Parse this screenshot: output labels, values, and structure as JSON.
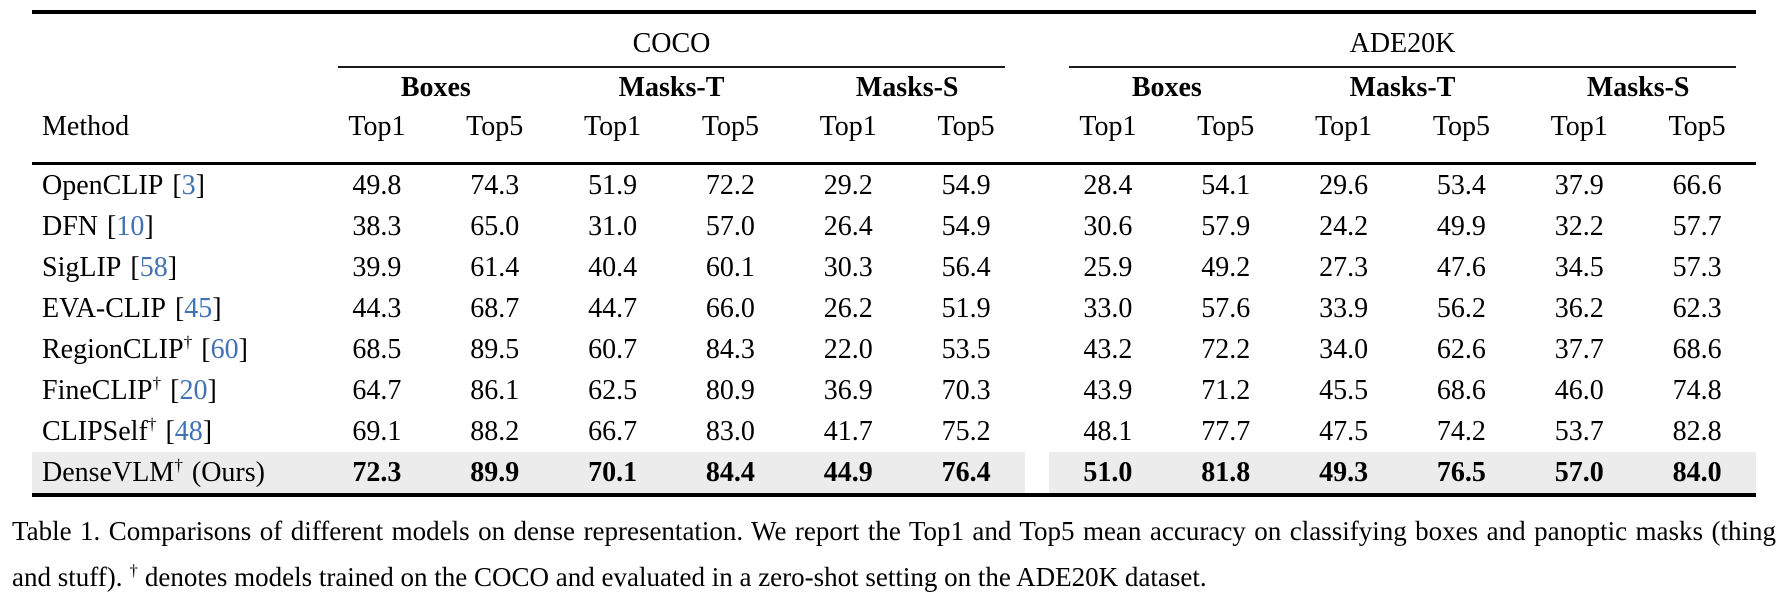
{
  "table": {
    "groups": [
      "COCO",
      "ADE20K"
    ],
    "subgroups": [
      "Boxes",
      "Masks-T",
      "Masks-S",
      "Boxes",
      "Masks-T",
      "Masks-S"
    ],
    "method_header": "Method",
    "metrics": [
      "Top1",
      "Top5",
      "Top1",
      "Top5",
      "Top1",
      "Top5",
      "Top1",
      "Top5",
      "Top1",
      "Top5",
      "Top1",
      "Top5"
    ],
    "rows": [
      {
        "method": "OpenCLIP",
        "dagger": false,
        "cite": "3",
        "suffix": "",
        "bold": false,
        "highlight": false,
        "values": [
          "49.8",
          "74.3",
          "51.9",
          "72.2",
          "29.2",
          "54.9",
          "28.4",
          "54.1",
          "29.6",
          "53.4",
          "37.9",
          "66.6"
        ]
      },
      {
        "method": "DFN",
        "dagger": false,
        "cite": "10",
        "suffix": "",
        "bold": false,
        "highlight": false,
        "values": [
          "38.3",
          "65.0",
          "31.0",
          "57.0",
          "26.4",
          "54.9",
          "30.6",
          "57.9",
          "24.2",
          "49.9",
          "32.2",
          "57.7"
        ]
      },
      {
        "method": "SigLIP",
        "dagger": false,
        "cite": "58",
        "suffix": "",
        "bold": false,
        "highlight": false,
        "values": [
          "39.9",
          "61.4",
          "40.4",
          "60.1",
          "30.3",
          "56.4",
          "25.9",
          "49.2",
          "27.3",
          "47.6",
          "34.5",
          "57.3"
        ]
      },
      {
        "method": "EVA-CLIP",
        "dagger": false,
        "cite": "45",
        "suffix": "",
        "bold": false,
        "highlight": false,
        "values": [
          "44.3",
          "68.7",
          "44.7",
          "66.0",
          "26.2",
          "51.9",
          "33.0",
          "57.6",
          "33.9",
          "56.2",
          "36.2",
          "62.3"
        ]
      },
      {
        "method": "RegionCLIP",
        "dagger": true,
        "cite": "60",
        "suffix": "",
        "bold": false,
        "highlight": false,
        "values": [
          "68.5",
          "89.5",
          "60.7",
          "84.3",
          "22.0",
          "53.5",
          "43.2",
          "72.2",
          "34.0",
          "62.6",
          "37.7",
          "68.6"
        ]
      },
      {
        "method": "FineCLIP",
        "dagger": true,
        "cite": "20",
        "suffix": "",
        "bold": false,
        "highlight": false,
        "values": [
          "64.7",
          "86.1",
          "62.5",
          "80.9",
          "36.9",
          "70.3",
          "43.9",
          "71.2",
          "45.5",
          "68.6",
          "46.0",
          "74.8"
        ]
      },
      {
        "method": "CLIPSelf",
        "dagger": true,
        "cite": "48",
        "suffix": "",
        "bold": false,
        "highlight": false,
        "values": [
          "69.1",
          "88.2",
          "66.7",
          "83.0",
          "41.7",
          "75.2",
          "48.1",
          "77.7",
          "47.5",
          "74.2",
          "53.7",
          "82.8"
        ]
      },
      {
        "method": "DenseVLM",
        "dagger": true,
        "cite": null,
        "suffix": "(Ours)",
        "bold": true,
        "highlight": true,
        "values": [
          "72.3",
          "89.9",
          "70.1",
          "84.4",
          "44.9",
          "76.4",
          "51.0",
          "81.8",
          "49.3",
          "76.5",
          "57.0",
          "84.0"
        ]
      }
    ]
  },
  "caption": {
    "seg1": "Table 1. Comparisons of different models on dense representation. We report the Top1 and Top5 mean accuracy on classifying boxes and panoptic masks (thing and stuff).",
    "dagger": "†",
    "seg2": "denotes models trained on the COCO and evaluated in a zero-shot setting on the ADE20K dataset."
  },
  "colors": {
    "citation_blue": "#4272b4",
    "highlight_gray": "#ececec",
    "rule_black": "#000000"
  }
}
